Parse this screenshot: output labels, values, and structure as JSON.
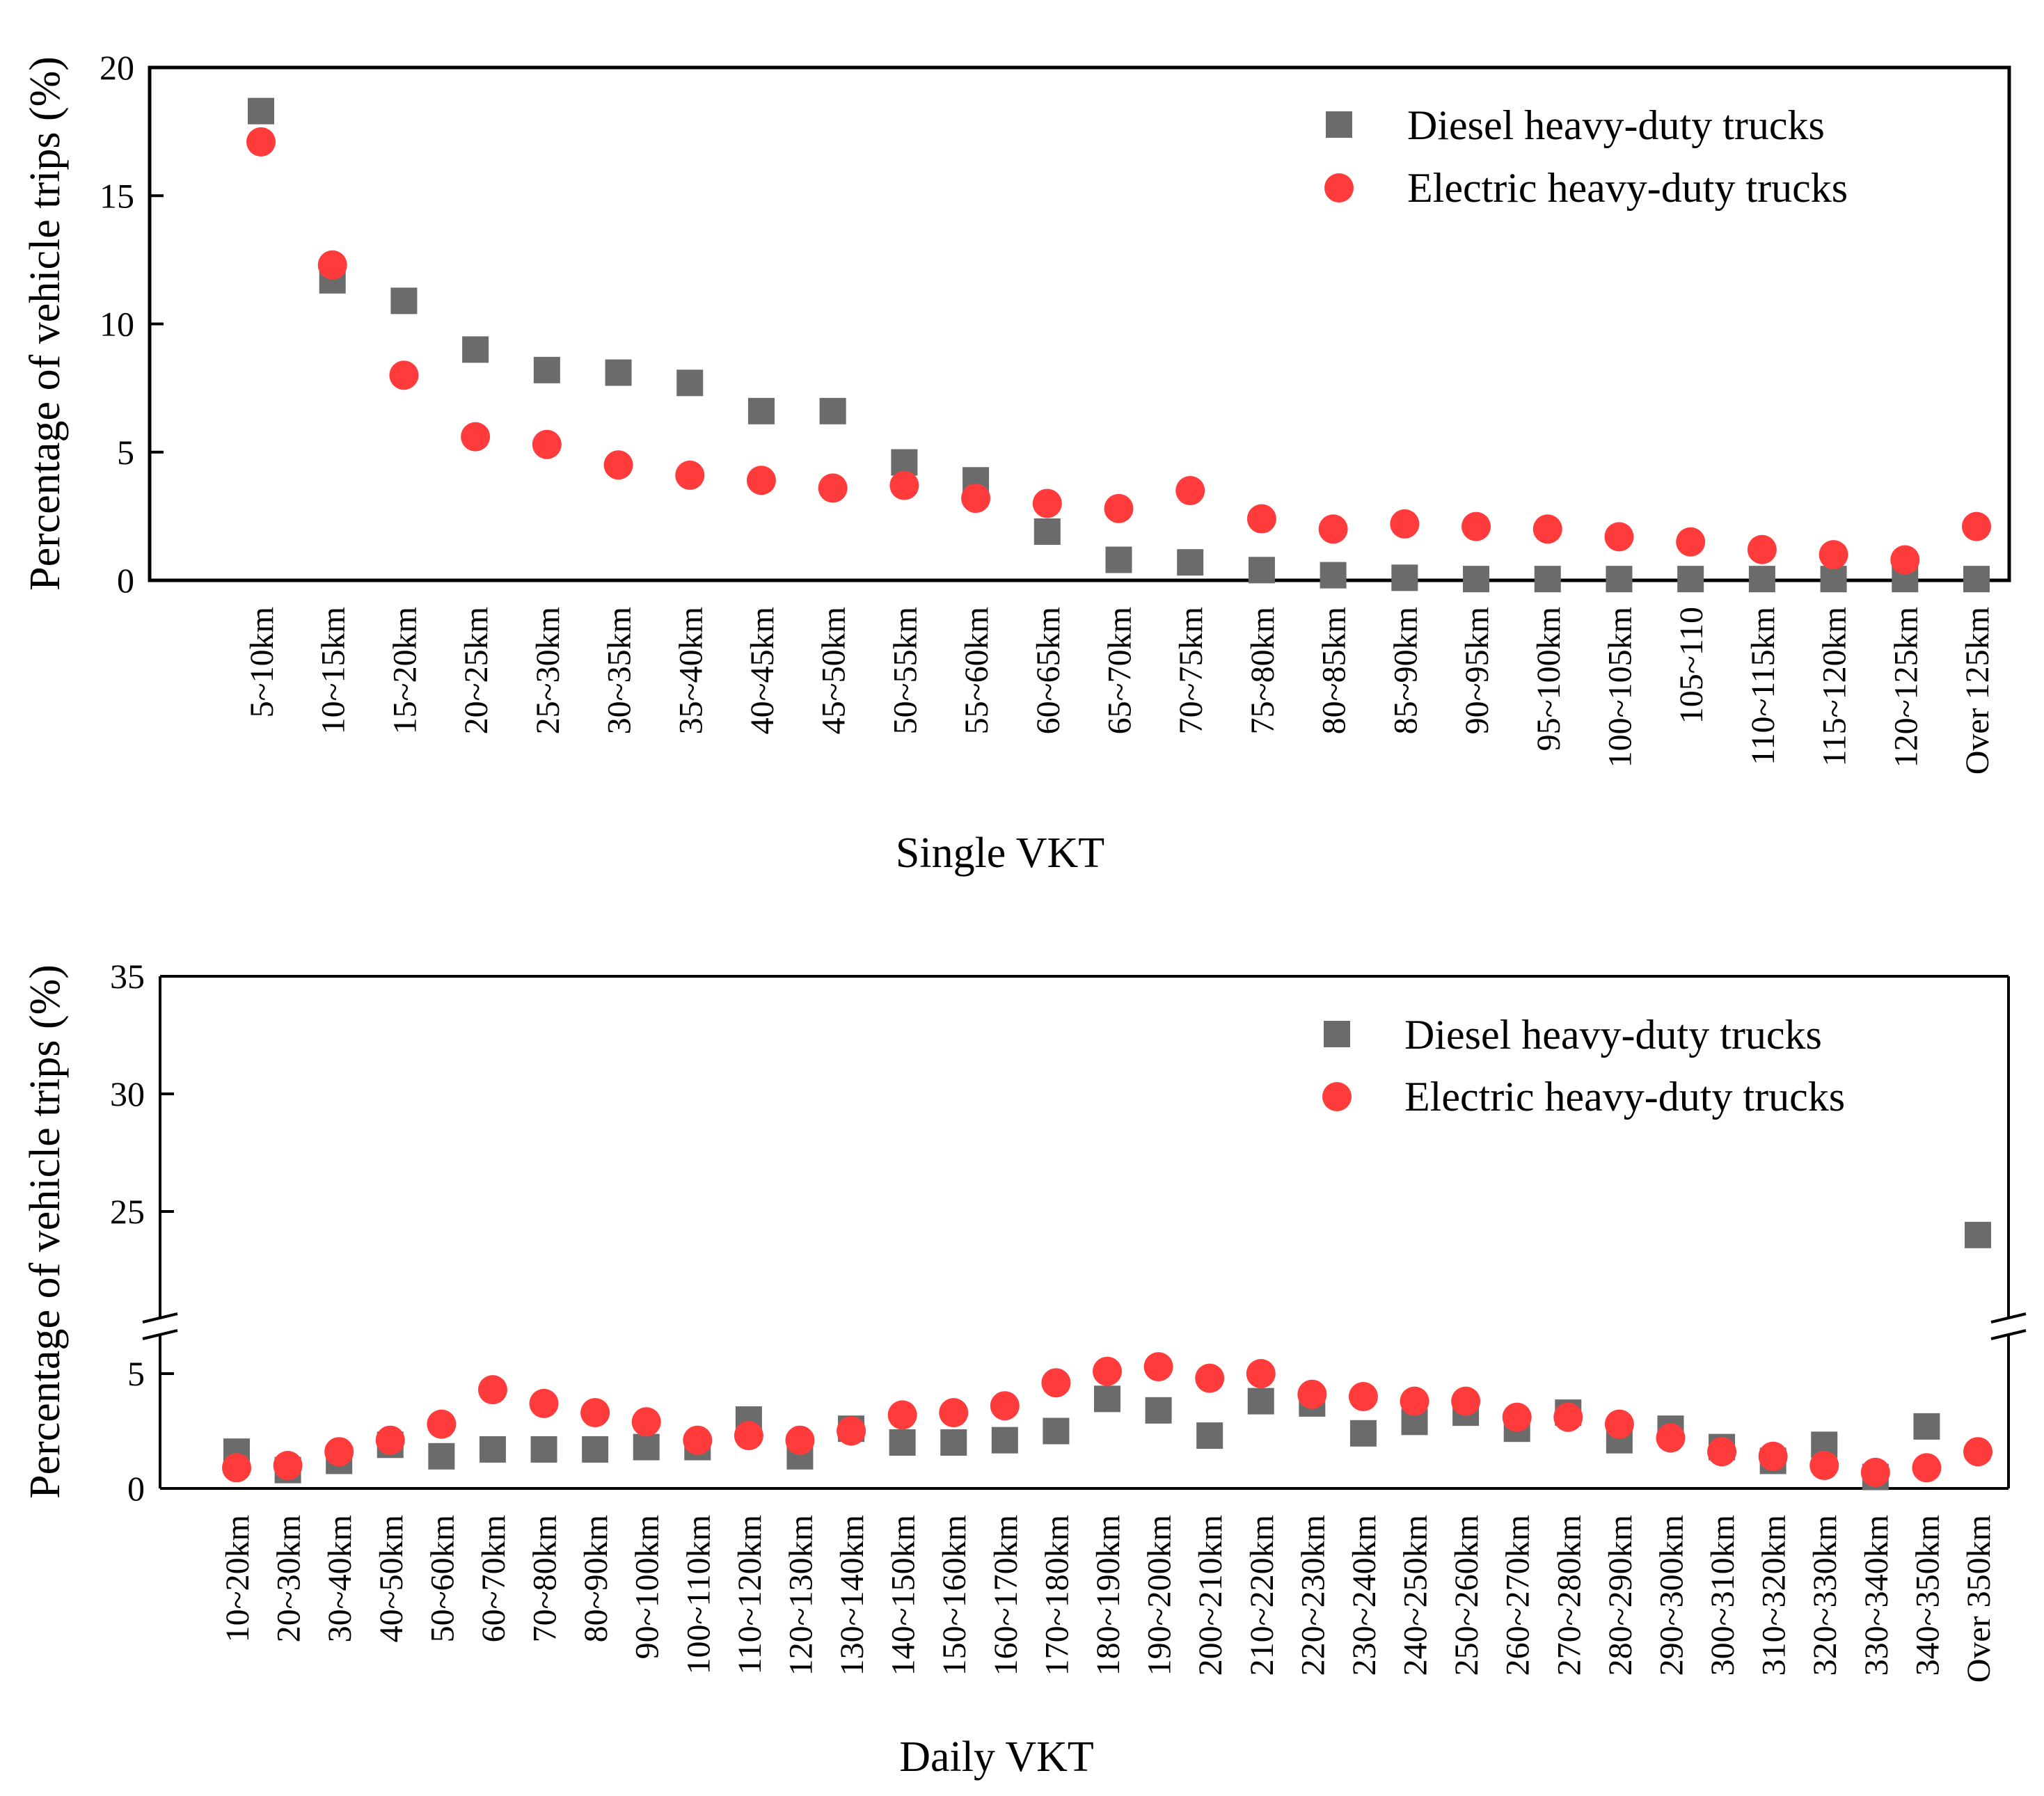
{
  "colors": {
    "diesel": "#6b6b6b",
    "electric": "#ff3b3b"
  },
  "chart_data": [
    {
      "type": "scatter",
      "xlabel": "Single VKT",
      "ylabel": "Percentage of vehicle trips (%)",
      "ylim": [
        0,
        20
      ],
      "yticks": [
        0,
        5,
        10,
        15,
        20
      ],
      "ytick_labels": [
        "0",
        "5",
        "10",
        "15",
        "20"
      ],
      "legend_position": "top-right",
      "categories": [
        "5~10km",
        "10~15km",
        "15~20km",
        "20~25km",
        "25~30km",
        "30~35km",
        "35~40km",
        "40~45km",
        "45~50km",
        "50~55km",
        "55~60km",
        "60~65km",
        "65~70km",
        "70~75km",
        "75~80km",
        "80~85km",
        "85~90km",
        "90~95km",
        "95~100km",
        "100~105km",
        "105~110",
        "110~115km",
        "115~120km",
        "120~125km",
        "Over 125km"
      ],
      "series": [
        {
          "name": "Diesel heavy-duty trucks",
          "marker": "square",
          "values": [
            18.3,
            11.7,
            10.9,
            9.0,
            8.2,
            8.1,
            7.7,
            6.6,
            6.6,
            4.6,
            3.9,
            1.9,
            0.8,
            0.7,
            0.4,
            0.2,
            0.1,
            0.05,
            0.05,
            0.05,
            0.05,
            0.05,
            0.05,
            0.05,
            0.05
          ]
        },
        {
          "name": "Electric heavy-duty trucks",
          "marker": "circle",
          "values": [
            17.1,
            12.3,
            8.0,
            5.6,
            5.3,
            4.5,
            4.1,
            3.9,
            3.6,
            3.7,
            3.2,
            3.0,
            2.8,
            3.5,
            2.4,
            2.0,
            2.2,
            2.1,
            2.0,
            1.7,
            1.5,
            1.2,
            1.0,
            0.8,
            2.1
          ]
        }
      ]
    },
    {
      "type": "scatter",
      "xlabel": "Daily VKT",
      "ylabel": "Percentage of vehicle trips (%)",
      "ylim": [
        0,
        35
      ],
      "axis_break": [
        7,
        21
      ],
      "yticks": [
        0,
        5,
        25,
        30,
        35
      ],
      "ytick_labels": [
        "0",
        "5",
        "25",
        "30",
        "35"
      ],
      "legend_position": "top-right",
      "categories": [
        "10~20km",
        "20~30km",
        "30~40km",
        "40~50km",
        "50~60km",
        "60~70km",
        "70~80km",
        "80~90km",
        "90~100km",
        "100~110km",
        "110~120km",
        "120~130km",
        "130~140km",
        "140~150km",
        "150~160km",
        "160~170km",
        "170~180km",
        "180~190km",
        "190~200km",
        "200~210km",
        "210~220km",
        "220~230km",
        "230~240km",
        "240~250km",
        "250~260km",
        "260~270km",
        "270~280km",
        "280~290km",
        "290~300km",
        "300~310km",
        "310~320km",
        "320~330km",
        "330~340km",
        "340~350km",
        "Over 350km"
      ],
      "series": [
        {
          "name": "Diesel heavy-duty trucks",
          "marker": "square",
          "values": [
            1.6,
            0.8,
            1.2,
            1.9,
            1.4,
            1.7,
            1.7,
            1.7,
            1.8,
            1.8,
            3.0,
            1.4,
            2.6,
            2.0,
            2.0,
            2.1,
            2.5,
            3.9,
            3.4,
            2.3,
            3.8,
            3.7,
            2.4,
            2.9,
            3.3,
            2.6,
            3.3,
            2.1,
            2.6,
            1.8,
            1.2,
            1.9,
            0.5,
            2.7,
            24.0
          ]
        },
        {
          "name": "Electric heavy-duty trucks",
          "marker": "circle",
          "values": [
            0.9,
            1.0,
            1.6,
            2.1,
            2.8,
            4.3,
            3.7,
            3.3,
            2.9,
            2.1,
            2.3,
            2.1,
            2.5,
            3.2,
            3.3,
            3.6,
            4.6,
            5.1,
            5.3,
            4.8,
            5.0,
            4.1,
            4.0,
            3.8,
            3.8,
            3.1,
            3.1,
            2.8,
            2.2,
            1.6,
            1.4,
            1.0,
            0.7,
            0.9,
            1.6
          ]
        }
      ]
    }
  ]
}
